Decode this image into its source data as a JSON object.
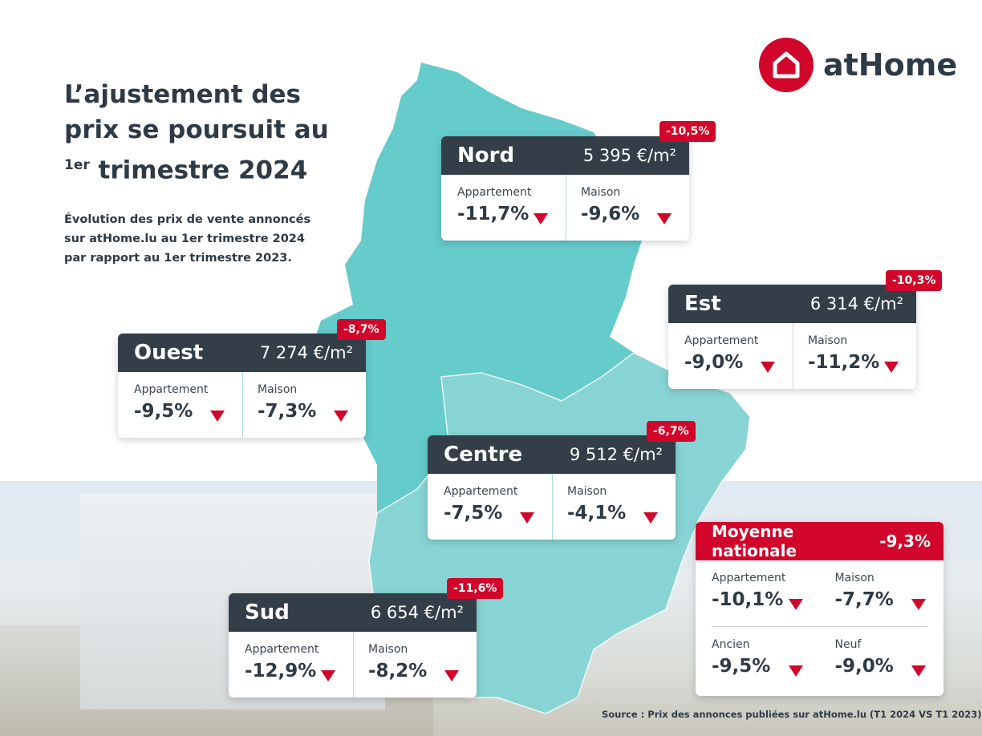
{
  "title": {
    "line1": "L’ajustement des",
    "line2": "prix se poursuit au",
    "line3_sup": "1er",
    "line3_rest": " trimestre 2024"
  },
  "subtitle": {
    "line1": "Évolution des prix de vente annoncés",
    "line2": "sur atHome.lu au 1er trimestre 2024",
    "line3": "par rapport au 1er trimestre 2023."
  },
  "logo": {
    "text": "atHome"
  },
  "colors": {
    "accent": "#d1062a",
    "header_dark": "#333e48",
    "map_teal": "#5ec8c8",
    "map_light": "#8fd6d6"
  },
  "labels": {
    "appartement": "Appartement",
    "maison": "Maison",
    "ancien": "Ancien",
    "neuf": "Neuf"
  },
  "regions": {
    "nord": {
      "name": "Nord",
      "price": "5 395 €/m²",
      "change": "-10,5%",
      "appartement": "-11,7%",
      "maison": "-9,6%"
    },
    "est": {
      "name": "Est",
      "price": "6 314 €/m²",
      "change": "-10,3%",
      "appartement": "-9,0%",
      "maison": "-11,2%"
    },
    "ouest": {
      "name": "Ouest",
      "price": "7 274 €/m²",
      "change": "-8,7%",
      "appartement": "-9,5%",
      "maison": "-7,3%"
    },
    "centre": {
      "name": "Centre",
      "price": "9 512 €/m²",
      "change": "-6,7%",
      "appartement": "-7,5%",
      "maison": "-4,1%"
    },
    "sud": {
      "name": "Sud",
      "price": "6 654 €/m²",
      "change": "-11,6%",
      "appartement": "-12,9%",
      "maison": "-8,2%"
    }
  },
  "national": {
    "title": "Moyenne nationale",
    "change": "-9,3%",
    "appartement": "-10,1%",
    "maison": "-7,7%",
    "ancien": "-9,5%",
    "neuf": "-9,0%"
  },
  "source": "Source : Prix des annonces publiées sur atHome.lu (T1 2024 VS T1 2023)"
}
